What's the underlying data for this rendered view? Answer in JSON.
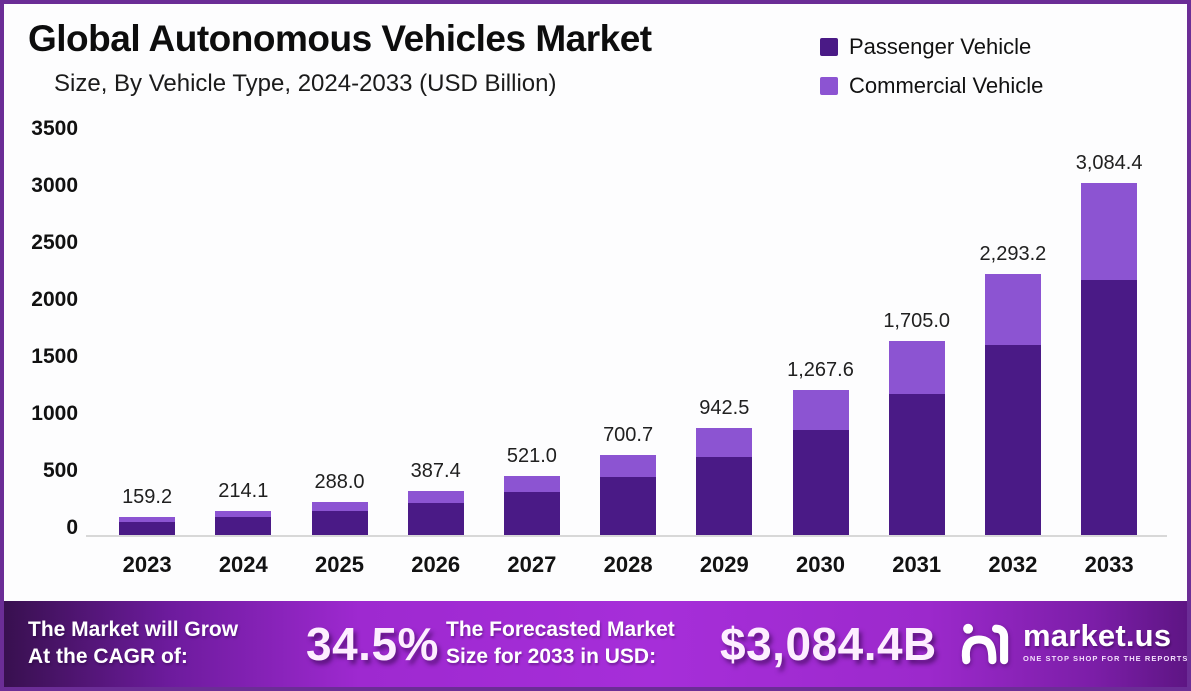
{
  "header": {
    "title": "Global Autonomous Vehicles Market",
    "subtitle": "Size, By Vehicle Type, 2024-2033 (USD Billion)"
  },
  "legend": [
    {
      "label": "Passenger Vehicle",
      "color": "#4a1a86"
    },
    {
      "label": "Commercial Vehicle",
      "color": "#8c54d2"
    }
  ],
  "chart_data": {
    "type": "bar",
    "stacked": true,
    "categories": [
      "2023",
      "2024",
      "2025",
      "2026",
      "2027",
      "2028",
      "2029",
      "2030",
      "2031",
      "2032",
      "2033"
    ],
    "series": [
      {
        "name": "Passenger Vehicle",
        "color": "#4a1a86",
        "values": [
          115.4,
          155.2,
          208.8,
          280.9,
          377.7,
          508.0,
          683.3,
          919.0,
          1236.1,
          1662.6,
          2236.2
        ]
      },
      {
        "name": "Commercial Vehicle",
        "color": "#8c54d2",
        "values": [
          43.8,
          58.9,
          79.2,
          106.5,
          143.3,
          192.7,
          259.2,
          348.6,
          468.9,
          630.6,
          848.2
        ]
      }
    ],
    "totals": [
      159.2,
      214.1,
      288.0,
      387.4,
      521.0,
      700.7,
      942.5,
      1267.6,
      1705.0,
      2293.2,
      3084.4
    ],
    "total_labels": [
      "159.2",
      "214.1",
      "288.0",
      "387.4",
      "521.0",
      "700.7",
      "942.5",
      "1,267.6",
      "1,705.0",
      "2,293.2",
      "3,084.4"
    ],
    "yticks": [
      0,
      500,
      1000,
      1500,
      2000,
      2500,
      3000,
      3500
    ],
    "ylim": [
      0,
      3500
    ],
    "grid": false,
    "legend_position": "top-right",
    "baseline_color": "#d8d8d8",
    "title": "Global Autonomous Vehicles Market",
    "subtitle": "Size, By Vehicle Type, 2024-2033 (USD Billion)",
    "xlabel": "",
    "ylabel": ""
  },
  "banner": {
    "cagr_text_line1": "The Market will Grow",
    "cagr_text_line2": "At the CAGR of:",
    "cagr_value": "34.5%",
    "forecast_text_line1": "The Forecasted Market",
    "forecast_text_line2": "Size for 2033 in USD:",
    "forecast_value": "$3,084.4B",
    "logo_name": "market.us",
    "logo_tagline": "ONE STOP SHOP FOR THE REPORTS"
  },
  "colors": {
    "border": "#6b2d96",
    "passenger": "#4a1a86",
    "commercial": "#8c54d2",
    "banner_gradient_mid": "#a62ed9"
  }
}
